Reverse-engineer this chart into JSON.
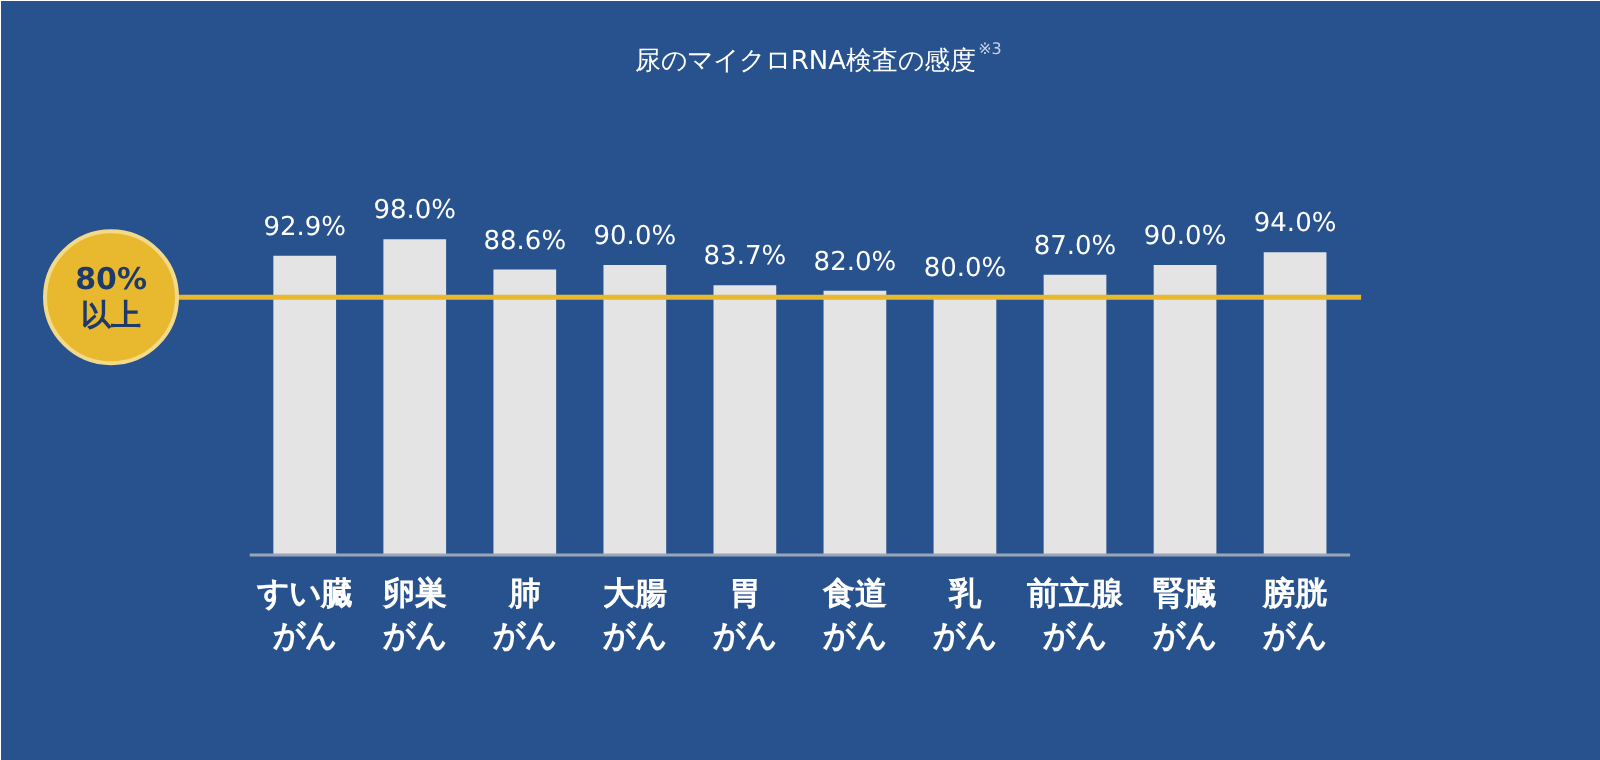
{
  "chart_data": {
    "type": "bar",
    "title": "尿のマイクロRNA検査の感度$^{※3}$",
    "categories": [
      "すい臓がん",
      "卵巣がん",
      "肺がん",
      "大腸がん",
      "胃がん",
      "食道がん",
      "乳がん",
      "前立腺がん",
      "腎臓がん",
      "膀胱がん"
    ],
    "values": [
      92.9,
      98.0,
      88.6,
      90.0,
      83.7,
      82.0,
      80.0,
      87.0,
      90.0,
      94.0
    ],
    "value_labels": [
      "92.9%",
      "98.0%",
      "88.6%",
      "90.0%",
      "83.7%",
      "82.0%",
      "80.0%",
      "87.0%",
      "90.0%",
      "94.0%"
    ],
    "color": "#e4e4e4",
    "ref_lines": [
      {
        "axis": "y",
        "value": 80,
        "label": "80%以上",
        "color": "#e8b92f"
      }
    ],
    "grid": false
  }
}
